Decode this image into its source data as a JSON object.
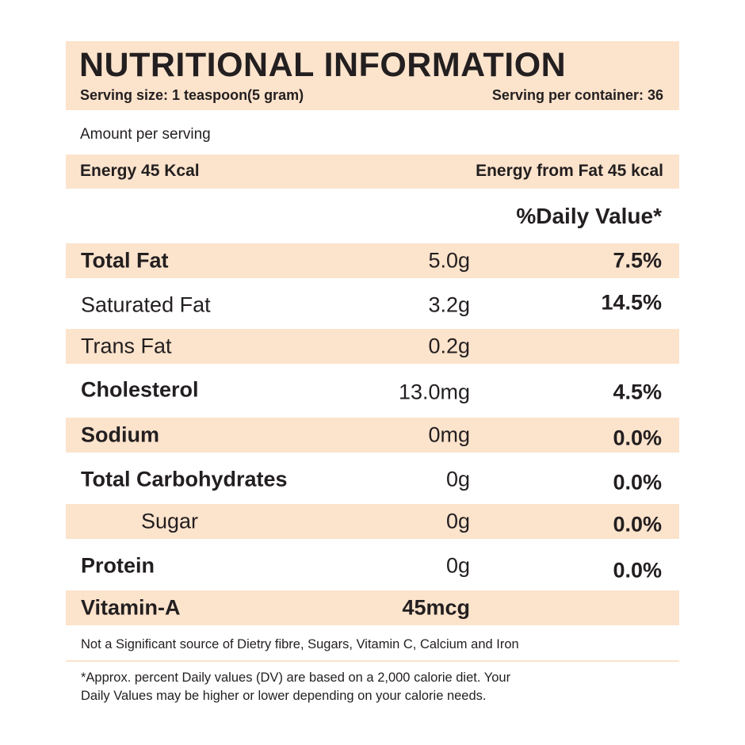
{
  "header": {
    "title": "NUTRITIONAL INFORMATION",
    "serving_size": "Serving size: 1 teaspoon(5 gram)",
    "servings_per_container": "Serving per container: 36"
  },
  "amount_per_serving": "Amount per serving",
  "energy": {
    "energy": "Energy 45 Kcal",
    "energy_from_fat": "Energy from Fat 45 kcal"
  },
  "daily_value_header": "%Daily Value*",
  "nutrients": [
    {
      "name": "Total Fat",
      "amount": "5.0g",
      "dv": "7.5%"
    },
    {
      "name": "Saturated Fat",
      "amount": "3.2g",
      "dv": "14.5%"
    },
    {
      "name": "Trans Fat",
      "amount": "0.2g",
      "dv": ""
    },
    {
      "name": "Cholesterol",
      "amount": "13.0mg",
      "dv": "4.5%"
    },
    {
      "name": "Sodium",
      "amount": "0mg",
      "dv": "0.0%"
    },
    {
      "name": "Total Carbohydrates",
      "amount": "0g",
      "dv": "0.0%"
    },
    {
      "name": "Sugar",
      "amount": "0g",
      "dv": "0.0%"
    },
    {
      "name": "Protein",
      "amount": "0g",
      "dv": "0.0%"
    },
    {
      "name": "Vitamin-A",
      "amount": "45mcg",
      "dv": ""
    }
  ],
  "footnotes": {
    "not_significant": "Not a Significant source of Dietry fibre, Sugars, Vitamin C, Calcium and Iron",
    "dv_note_1": "*Approx. percent Daily values (DV) are based on a 2,000 calorie diet. Your",
    "dv_note_2": "Daily Values may be higher or lower depending on your calorie needs."
  },
  "colors": {
    "band": "#fce3cc",
    "text": "#231f20"
  }
}
